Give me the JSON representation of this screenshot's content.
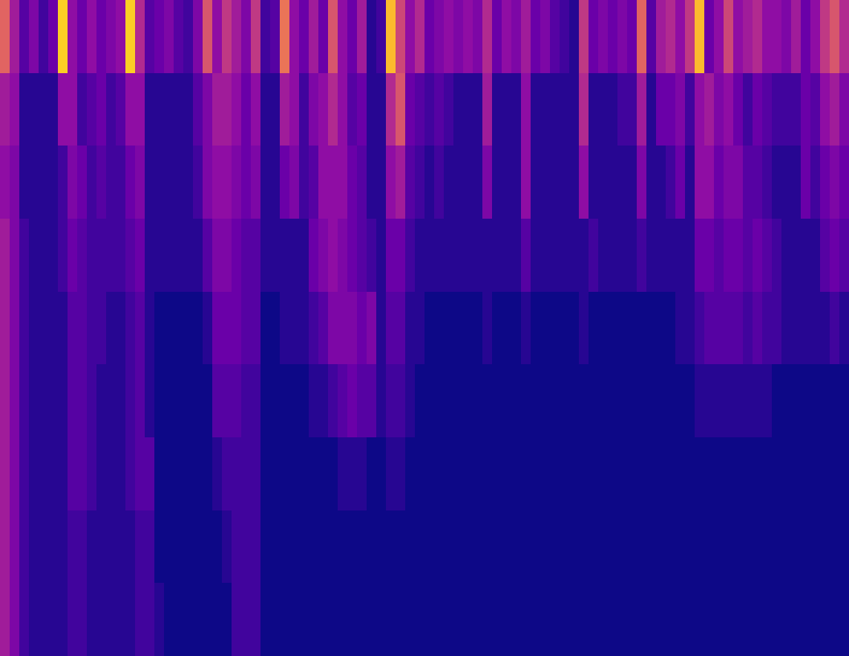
{
  "chart_data": {
    "type": "heatmap",
    "tick_labels": false,
    "zlim": [
      0,
      100
    ],
    "cells": [
      [
        60,
        35,
        15,
        25,
        10,
        20,
        90,
        30,
        20,
        30,
        20,
        25,
        30,
        90,
        40,
        15,
        20,
        25,
        15,
        10,
        25,
        55,
        30,
        45,
        35,
        25,
        45,
        10,
        15,
        65,
        30,
        20,
        35,
        20,
        55,
        30,
        20,
        35,
        5,
        10,
        85,
        50,
        30,
        40,
        20,
        25,
        30,
        25,
        30,
        25,
        40,
        20,
        30,
        25,
        35,
        20,
        25,
        15,
        10,
        5,
        45,
        20,
        25,
        20,
        25,
        20,
        60,
        15,
        35,
        40,
        30,
        45,
        85,
        20,
        30,
        50,
        30,
        35,
        40,
        30,
        30,
        25,
        35,
        20,
        30,
        45,
        55,
        40
      ],
      [
        35,
        30,
        5,
        5,
        5,
        5,
        30,
        30,
        10,
        15,
        20,
        10,
        15,
        30,
        30,
        5,
        5,
        5,
        5,
        5,
        15,
        25,
        35,
        35,
        30,
        20,
        30,
        5,
        5,
        35,
        30,
        10,
        25,
        30,
        40,
        30,
        15,
        20,
        5,
        5,
        40,
        55,
        20,
        15,
        10,
        15,
        10,
        5,
        5,
        5,
        35,
        5,
        5,
        5,
        30,
        5,
        5,
        5,
        5,
        5,
        40,
        5,
        5,
        5,
        10,
        10,
        35,
        5,
        20,
        20,
        25,
        10,
        30,
        35,
        25,
        30,
        20,
        10,
        20,
        15,
        10,
        10,
        10,
        20,
        15,
        30,
        35,
        25
      ],
      [
        30,
        25,
        5,
        5,
        5,
        5,
        10,
        25,
        20,
        10,
        15,
        10,
        10,
        20,
        25,
        5,
        5,
        5,
        5,
        5,
        10,
        25,
        30,
        30,
        25,
        20,
        25,
        5,
        5,
        20,
        25,
        10,
        15,
        30,
        30,
        30,
        20,
        15,
        5,
        5,
        30,
        35,
        15,
        10,
        5,
        10,
        5,
        5,
        5,
        5,
        25,
        5,
        5,
        5,
        30,
        5,
        5,
        5,
        5,
        5,
        30,
        5,
        5,
        5,
        5,
        5,
        25,
        5,
        5,
        10,
        20,
        5,
        30,
        30,
        20,
        25,
        25,
        15,
        15,
        10,
        5,
        5,
        5,
        20,
        10,
        20,
        25,
        20
      ],
      [
        35,
        25,
        10,
        5,
        5,
        5,
        10,
        20,
        15,
        10,
        10,
        10,
        10,
        15,
        20,
        5,
        5,
        5,
        5,
        5,
        5,
        15,
        25,
        25,
        20,
        15,
        15,
        5,
        5,
        5,
        5,
        5,
        20,
        25,
        30,
        25,
        20,
        15,
        10,
        5,
        20,
        20,
        10,
        5,
        5,
        5,
        5,
        5,
        5,
        5,
        5,
        5,
        5,
        5,
        15,
        5,
        5,
        5,
        5,
        5,
        5,
        10,
        5,
        5,
        5,
        5,
        10,
        5,
        5,
        5,
        5,
        5,
        20,
        20,
        15,
        20,
        20,
        15,
        20,
        15,
        10,
        5,
        5,
        5,
        5,
        15,
        20,
        15
      ],
      [
        35,
        25,
        10,
        5,
        5,
        5,
        5,
        15,
        15,
        10,
        10,
        5,
        5,
        10,
        15,
        5,
        0,
        0,
        0,
        0,
        0,
        5,
        20,
        20,
        20,
        15,
        15,
        0,
        0,
        5,
        5,
        5,
        10,
        15,
        25,
        25,
        25,
        20,
        25,
        5,
        15,
        15,
        5,
        5,
        0,
        0,
        0,
        0,
        0,
        0,
        5,
        0,
        0,
        0,
        5,
        0,
        0,
        0,
        0,
        0,
        5,
        0,
        0,
        0,
        0,
        0,
        0,
        0,
        0,
        0,
        5,
        5,
        10,
        15,
        15,
        15,
        15,
        10,
        15,
        10,
        10,
        5,
        5,
        5,
        5,
        5,
        10,
        5
      ],
      [
        35,
        25,
        10,
        5,
        5,
        5,
        5,
        15,
        15,
        10,
        5,
        5,
        5,
        10,
        15,
        5,
        0,
        0,
        0,
        0,
        0,
        0,
        15,
        15,
        15,
        10,
        10,
        0,
        0,
        0,
        0,
        0,
        5,
        5,
        10,
        15,
        20,
        15,
        15,
        5,
        10,
        10,
        5,
        0,
        0,
        0,
        0,
        0,
        0,
        0,
        0,
        0,
        0,
        0,
        0,
        0,
        0,
        0,
        0,
        0,
        0,
        0,
        0,
        0,
        0,
        0,
        0,
        0,
        0,
        0,
        0,
        0,
        5,
        5,
        5,
        5,
        5,
        5,
        5,
        5,
        0,
        0,
        0,
        0,
        0,
        0,
        0,
        0
      ],
      [
        35,
        25,
        10,
        5,
        5,
        5,
        5,
        15,
        15,
        10,
        5,
        5,
        5,
        10,
        15,
        15,
        0,
        0,
        0,
        0,
        0,
        0,
        5,
        10,
        10,
        10,
        10,
        0,
        0,
        0,
        0,
        0,
        0,
        0,
        0,
        5,
        5,
        5,
        0,
        0,
        5,
        5,
        0,
        0,
        0,
        0,
        0,
        0,
        0,
        0,
        0,
        0,
        0,
        0,
        0,
        0,
        0,
        0,
        0,
        0,
        0,
        0,
        0,
        0,
        0,
        0,
        0,
        0,
        0,
        0,
        0,
        0,
        0,
        0,
        0,
        0,
        0,
        0,
        0,
        0,
        0,
        0,
        0,
        0,
        0,
        0,
        0,
        0
      ],
      [
        35,
        25,
        10,
        5,
        5,
        5,
        5,
        10,
        10,
        5,
        5,
        5,
        5,
        5,
        10,
        10,
        0,
        0,
        0,
        0,
        0,
        0,
        0,
        5,
        10,
        10,
        10,
        0,
        0,
        0,
        0,
        0,
        0,
        0,
        0,
        0,
        0,
        0,
        0,
        0,
        0,
        0,
        0,
        0,
        0,
        0,
        0,
        0,
        0,
        0,
        0,
        0,
        0,
        0,
        0,
        0,
        0,
        0,
        0,
        0,
        0,
        0,
        0,
        0,
        0,
        0,
        0,
        0,
        0,
        0,
        0,
        0,
        0,
        0,
        0,
        0,
        0,
        0,
        0,
        0,
        0,
        0,
        0,
        0,
        0,
        0,
        0,
        0
      ],
      [
        35,
        25,
        10,
        5,
        5,
        5,
        5,
        10,
        10,
        5,
        5,
        5,
        5,
        5,
        10,
        10,
        5,
        0,
        0,
        0,
        0,
        0,
        0,
        0,
        10,
        10,
        10,
        0,
        0,
        0,
        0,
        0,
        0,
        0,
        0,
        0,
        0,
        0,
        0,
        0,
        0,
        0,
        0,
        0,
        0,
        0,
        0,
        0,
        0,
        0,
        0,
        0,
        0,
        0,
        0,
        0,
        0,
        0,
        0,
        0,
        0,
        0,
        0,
        0,
        0,
        0,
        0,
        0,
        0,
        0,
        0,
        0,
        0,
        0,
        0,
        0,
        0,
        0,
        0,
        0,
        0,
        0,
        0,
        0,
        0,
        0,
        0,
        0
      ]
    ]
  }
}
